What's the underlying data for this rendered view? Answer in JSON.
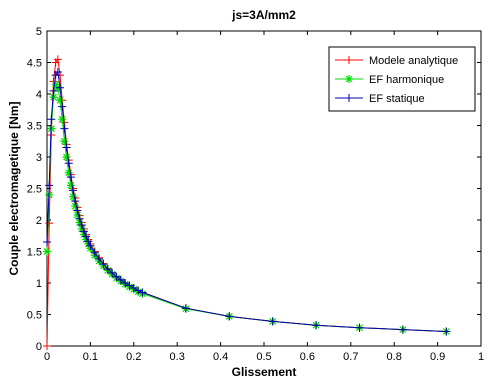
{
  "chart_data": {
    "type": "line",
    "title": "js=3A/mm2",
    "xlabel": "Glissement",
    "ylabel": "Couple electromagetique [Nm]",
    "xlim": [
      0,
      1
    ],
    "ylim": [
      0,
      5
    ],
    "xticks": [
      "0",
      "0.1",
      "0.2",
      "0.3",
      "0.4",
      "0.5",
      "0.6",
      "0.7",
      "0.8",
      "0.9",
      "1"
    ],
    "yticks": [
      "0",
      "0.5",
      "1",
      "1.5",
      "2",
      "2.5",
      "3",
      "3.5",
      "4",
      "4.5",
      "5"
    ],
    "grid": false,
    "legend_position": "top-right",
    "series": [
      {
        "name": "Modele analytique",
        "color": "#ff0000",
        "marker": "plus",
        "x": [
          0.0,
          0.005,
          0.01,
          0.015,
          0.02,
          0.025,
          0.03,
          0.035,
          0.04,
          0.045,
          0.05,
          0.055,
          0.06,
          0.065,
          0.07,
          0.075,
          0.08,
          0.085,
          0.09,
          0.095,
          0.1,
          0.11,
          0.12,
          0.13,
          0.14,
          0.15,
          0.16,
          0.17,
          0.18,
          0.19,
          0.2,
          0.21,
          0.22,
          0.32,
          0.42,
          0.52,
          0.62,
          0.72,
          0.82,
          0.92
        ],
        "y": [
          0.0,
          1.95,
          3.35,
          4.2,
          4.5,
          4.55,
          4.3,
          3.9,
          3.55,
          3.2,
          2.95,
          2.72,
          2.5,
          2.35,
          2.2,
          2.07,
          1.96,
          1.86,
          1.77,
          1.69,
          1.62,
          1.5,
          1.4,
          1.31,
          1.23,
          1.16,
          1.1,
          1.05,
          1.0,
          0.96,
          0.92,
          0.88,
          0.85,
          0.6,
          0.47,
          0.39,
          0.33,
          0.29,
          0.26,
          0.23
        ]
      },
      {
        "name": "EF harmonique",
        "color": "#00dd00",
        "marker": "star",
        "x": [
          0.0,
          0.005,
          0.01,
          0.015,
          0.02,
          0.025,
          0.03,
          0.035,
          0.04,
          0.045,
          0.05,
          0.055,
          0.06,
          0.065,
          0.07,
          0.075,
          0.08,
          0.085,
          0.09,
          0.095,
          0.1,
          0.11,
          0.12,
          0.13,
          0.14,
          0.15,
          0.16,
          0.17,
          0.18,
          0.19,
          0.2,
          0.21,
          0.22,
          0.32,
          0.42,
          0.52,
          0.62,
          0.72,
          0.82,
          0.92
        ],
        "y": [
          1.5,
          2.4,
          3.45,
          3.95,
          4.15,
          4.1,
          3.9,
          3.6,
          3.25,
          3.0,
          2.75,
          2.55,
          2.37,
          2.22,
          2.08,
          1.96,
          1.86,
          1.77,
          1.69,
          1.62,
          1.55,
          1.44,
          1.35,
          1.27,
          1.2,
          1.14,
          1.08,
          1.03,
          0.98,
          0.94,
          0.9,
          0.86,
          0.83,
          0.59,
          0.47,
          0.39,
          0.33,
          0.29,
          0.26,
          0.23
        ]
      },
      {
        "name": "EF statique",
        "color": "#0000aa",
        "marker": "plus",
        "x": [
          0.0,
          0.005,
          0.01,
          0.015,
          0.02,
          0.025,
          0.03,
          0.035,
          0.04,
          0.045,
          0.05,
          0.055,
          0.06,
          0.065,
          0.07,
          0.075,
          0.08,
          0.085,
          0.09,
          0.095,
          0.1,
          0.11,
          0.12,
          0.13,
          0.14,
          0.15,
          0.16,
          0.17,
          0.18,
          0.19,
          0.2,
          0.21,
          0.22,
          0.32,
          0.42,
          0.52,
          0.62,
          0.72,
          0.82,
          0.92
        ],
        "y": [
          1.65,
          2.55,
          3.6,
          4.05,
          4.3,
          4.35,
          4.1,
          3.8,
          3.45,
          3.15,
          2.9,
          2.68,
          2.47,
          2.3,
          2.15,
          2.02,
          1.92,
          1.82,
          1.74,
          1.66,
          1.59,
          1.48,
          1.38,
          1.3,
          1.22,
          1.16,
          1.1,
          1.05,
          1.0,
          0.96,
          0.92,
          0.88,
          0.85,
          0.6,
          0.47,
          0.39,
          0.33,
          0.29,
          0.26,
          0.23
        ]
      }
    ]
  }
}
